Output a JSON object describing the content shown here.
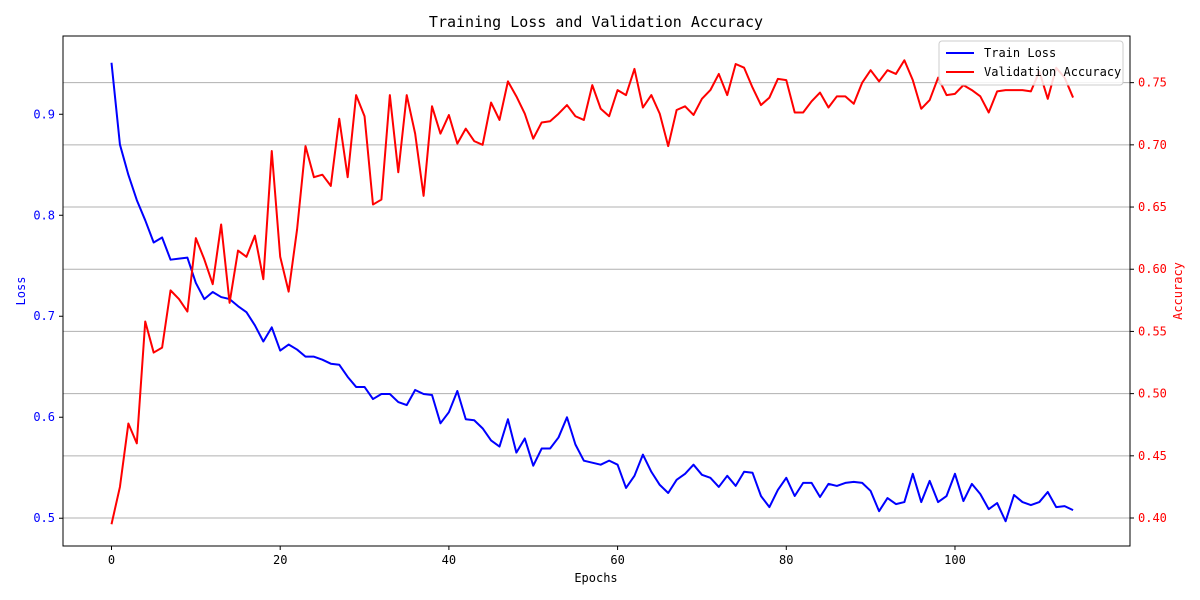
{
  "chart_data": {
    "type": "line",
    "title": "Training Loss and Validation Accuracy",
    "xlabel": "Epochs",
    "ylabel_left": "Loss",
    "ylabel_right": "Accuracy",
    "xlim": [
      -5.75,
      120.75
    ],
    "ylim_left": [
      0.4725,
      0.9775
    ],
    "ylim_right": [
      0.3775,
      0.7875
    ],
    "x_ticks": [
      0,
      20,
      40,
      60,
      80,
      100
    ],
    "y_ticks_left": [
      0.5,
      0.6,
      0.7,
      0.8,
      0.9
    ],
    "y_ticks_right": [
      0.4,
      0.45,
      0.5,
      0.55,
      0.6,
      0.65,
      0.7,
      0.75
    ],
    "grid": "horizontal (right axis)",
    "legend_position": "top-right",
    "colors": {
      "loss": "#0000ff",
      "accuracy": "#ff0000",
      "grid": "#b0b0b0",
      "axis": "#000000"
    },
    "series": [
      {
        "name": "Train Loss",
        "axis": "left",
        "color": "#0000ff",
        "values": [
          0.951,
          0.87,
          0.84,
          0.815,
          0.795,
          0.773,
          0.778,
          0.756,
          0.757,
          0.758,
          0.733,
          0.717,
          0.724,
          0.719,
          0.717,
          0.71,
          0.704,
          0.691,
          0.675,
          0.689,
          0.666,
          0.672,
          0.667,
          0.66,
          0.66,
          0.657,
          0.653,
          0.652,
          0.64,
          0.63,
          0.63,
          0.618,
          0.623,
          0.623,
          0.615,
          0.612,
          0.627,
          0.623,
          0.622,
          0.594,
          0.605,
          0.626,
          0.598,
          0.597,
          0.589,
          0.577,
          0.571,
          0.598,
          0.565,
          0.579,
          0.552,
          0.569,
          0.569,
          0.58,
          0.6,
          0.573,
          0.557,
          0.555,
          0.553,
          0.557,
          0.553,
          0.53,
          0.542,
          0.563,
          0.546,
          0.533,
          0.525,
          0.538,
          0.544,
          0.553,
          0.543,
          0.54,
          0.531,
          0.542,
          0.532,
          0.546,
          0.545,
          0.522,
          0.511,
          0.528,
          0.54,
          0.522,
          0.535,
          0.535,
          0.521,
          0.534,
          0.532,
          0.535,
          0.536,
          0.535,
          0.527,
          0.507,
          0.52,
          0.514,
          0.516,
          0.544,
          0.516,
          0.537,
          0.516,
          0.522,
          0.544,
          0.517,
          0.534,
          0.524,
          0.509,
          0.515,
          0.497,
          0.523,
          0.516,
          0.513,
          0.516,
          0.526,
          0.511,
          0.512,
          0.508
        ]
      },
      {
        "name": "Validation Accuracy",
        "axis": "right",
        "color": "#ff0000",
        "values": [
          0.395,
          0.425,
          0.476,
          0.46,
          0.558,
          0.533,
          0.537,
          0.583,
          0.576,
          0.566,
          0.625,
          0.608,
          0.588,
          0.636,
          0.573,
          0.615,
          0.61,
          0.627,
          0.592,
          0.695,
          0.61,
          0.582,
          0.632,
          0.699,
          0.674,
          0.676,
          0.667,
          0.721,
          0.674,
          0.74,
          0.723,
          0.652,
          0.656,
          0.74,
          0.678,
          0.74,
          0.709,
          0.659,
          0.731,
          0.709,
          0.724,
          0.701,
          0.713,
          0.703,
          0.7,
          0.734,
          0.72,
          0.751,
          0.739,
          0.725,
          0.705,
          0.718,
          0.719,
          0.725,
          0.732,
          0.723,
          0.72,
          0.748,
          0.729,
          0.723,
          0.744,
          0.74,
          0.761,
          0.73,
          0.74,
          0.725,
          0.699,
          0.728,
          0.731,
          0.724,
          0.737,
          0.744,
          0.757,
          0.74,
          0.765,
          0.762,
          0.746,
          0.732,
          0.738,
          0.753,
          0.752,
          0.726,
          0.726,
          0.735,
          0.742,
          0.73,
          0.739,
          0.739,
          0.733,
          0.75,
          0.76,
          0.751,
          0.76,
          0.757,
          0.768,
          0.752,
          0.729,
          0.736,
          0.754,
          0.74,
          0.741,
          0.748,
          0.744,
          0.739,
          0.726,
          0.743,
          0.744,
          0.744,
          0.744,
          0.743,
          0.759,
          0.737,
          0.762,
          0.754,
          0.738
        ]
      }
    ]
  }
}
